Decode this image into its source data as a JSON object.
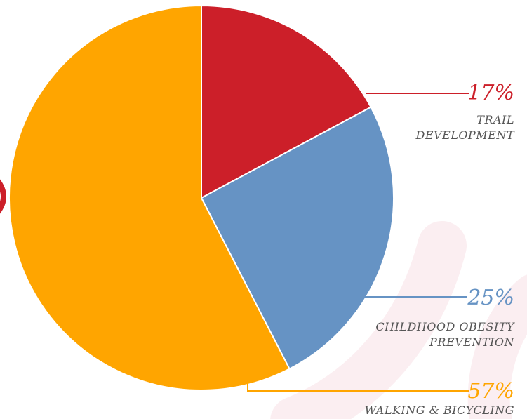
{
  "chart_data": {
    "type": "pie",
    "categories": [
      "TRAIL DEVELOPMENT",
      "CHILDHOOD OBESITY PREVENTION",
      "WALKING & BICYCLING"
    ],
    "values": [
      17,
      25,
      57
    ],
    "value_labels": [
      "17%",
      "25%",
      "57%"
    ],
    "colors": [
      "#cc1f29",
      "#6693c4",
      "#ffa500"
    ]
  }
}
